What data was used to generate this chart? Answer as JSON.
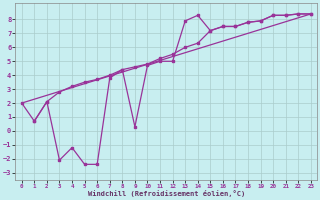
{
  "xlabel": "Windchill (Refroidissement éolien,°C)",
  "bg_color": "#c8eef0",
  "grid_color": "#aacccc",
  "line_color": "#993399",
  "xlim": [
    -0.5,
    23.5
  ],
  "ylim": [
    -3.5,
    9.2
  ],
  "xticks": [
    0,
    1,
    2,
    3,
    4,
    5,
    6,
    7,
    8,
    9,
    10,
    11,
    12,
    13,
    14,
    15,
    16,
    17,
    18,
    19,
    20,
    21,
    22,
    23
  ],
  "yticks": [
    -3,
    -2,
    -1,
    0,
    1,
    2,
    3,
    4,
    5,
    6,
    7,
    8
  ],
  "line1_x": [
    0,
    1,
    2,
    3,
    4,
    5,
    6,
    7,
    8,
    9,
    10,
    11,
    12,
    13,
    14,
    15,
    16,
    17,
    18,
    19,
    20,
    21,
    22,
    23
  ],
  "line1_y": [
    2.0,
    0.7,
    2.1,
    -2.1,
    -1.2,
    -2.4,
    -2.4,
    3.8,
    4.4,
    0.3,
    4.7,
    5.0,
    5.0,
    7.9,
    8.3,
    7.2,
    7.5,
    7.5,
    7.8,
    7.9,
    8.3,
    8.3,
    8.4,
    8.4
  ],
  "line2_x": [
    1,
    2,
    3,
    4,
    5,
    6,
    7,
    8,
    9,
    10,
    11,
    12,
    13,
    14,
    15,
    16,
    17,
    18,
    19,
    20,
    21,
    22,
    23
  ],
  "line2_y": [
    0.7,
    2.1,
    2.8,
    3.2,
    3.5,
    3.7,
    4.0,
    4.4,
    4.6,
    4.8,
    5.2,
    5.5,
    6.0,
    6.3,
    7.2,
    7.5,
    7.5,
    7.8,
    7.9,
    8.3,
    8.3,
    8.4,
    8.4
  ],
  "line3_x": [
    0,
    23
  ],
  "line3_y": [
    2.0,
    8.4
  ]
}
